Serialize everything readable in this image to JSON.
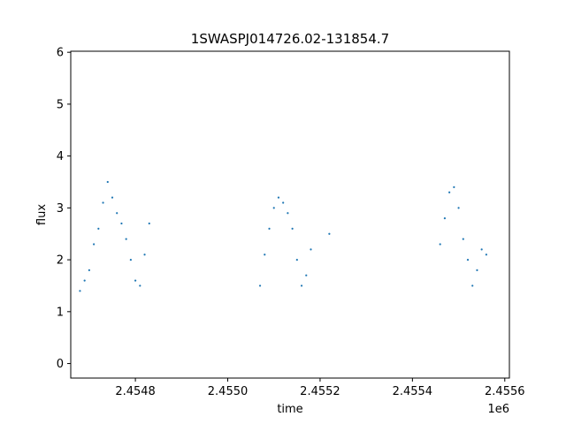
{
  "chart_data": {
    "type": "scatter",
    "title": "1SWASPJ014726.02-131854.7",
    "xlabel": "time",
    "ylabel": "flux",
    "x_offset_label": "1e6",
    "xlim": [
      2.45466,
      2.45561
    ],
    "ylim": [
      -0.28,
      6.02
    ],
    "x_ticks": [
      2.4548,
      2.455,
      2.4552,
      2.4554,
      2.4556
    ],
    "x_tick_labels": [
      "2.4548",
      "2.4550",
      "2.4552",
      "2.4554",
      "2.4556"
    ],
    "y_ticks": [
      0,
      1,
      2,
      3,
      4,
      5,
      6
    ],
    "y_tick_labels": [
      "0",
      "1",
      "2",
      "3",
      "4",
      "5",
      "6"
    ],
    "grid": false,
    "marker_color": "#1f77b4",
    "series": [
      {
        "points": [
          [
            2.45468,
            1.4
          ],
          [
            2.45469,
            1.6
          ],
          [
            2.4547,
            1.8
          ],
          [
            2.45471,
            2.3
          ],
          [
            2.45472,
            2.6
          ],
          [
            2.45473,
            3.1
          ],
          [
            2.45474,
            3.5
          ],
          [
            2.45475,
            3.2
          ],
          [
            2.45476,
            2.9
          ],
          [
            2.45477,
            2.7
          ],
          [
            2.45478,
            2.4
          ],
          [
            2.45479,
            2.0
          ],
          [
            2.4548,
            1.6
          ],
          [
            2.45481,
            1.5
          ],
          [
            2.45482,
            2.1
          ],
          [
            2.45483,
            2.7
          ],
          [
            2.45507,
            1.5
          ],
          [
            2.45508,
            2.1
          ],
          [
            2.45509,
            2.6
          ],
          [
            2.4551,
            3.0
          ],
          [
            2.45511,
            3.2
          ],
          [
            2.45512,
            3.1
          ],
          [
            2.45513,
            2.9
          ],
          [
            2.45514,
            2.6
          ],
          [
            2.45515,
            2.0
          ],
          [
            2.45516,
            1.5
          ],
          [
            2.45517,
            1.7
          ],
          [
            2.45518,
            2.2
          ],
          [
            2.45522,
            2.5
          ],
          [
            2.45546,
            2.3
          ],
          [
            2.45547,
            2.8
          ],
          [
            2.45548,
            3.3
          ],
          [
            2.45549,
            3.4
          ],
          [
            2.4555,
            3.0
          ],
          [
            2.45551,
            2.4
          ],
          [
            2.45552,
            2.0
          ],
          [
            2.45553,
            1.5
          ],
          [
            2.45554,
            1.8
          ],
          [
            2.45555,
            2.2
          ],
          [
            2.45556,
            2.1
          ]
        ]
      }
    ]
  }
}
